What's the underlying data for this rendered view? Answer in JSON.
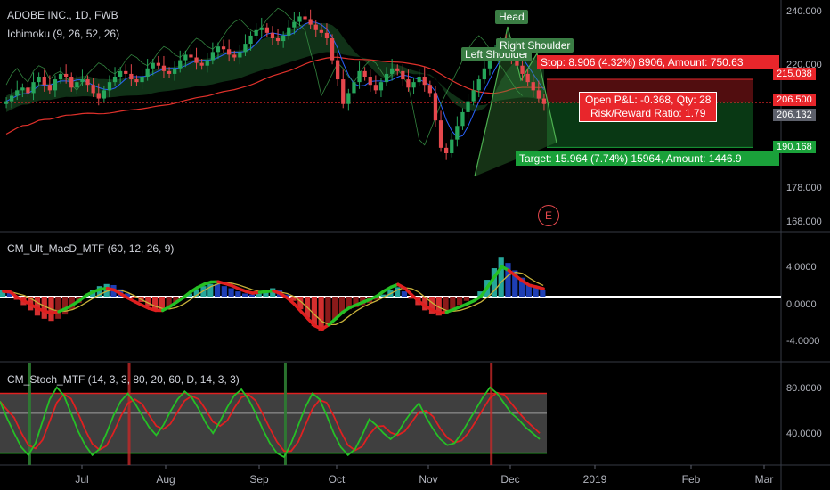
{
  "header": {
    "symbol_line": "ADOBE INC., 1D, FWB",
    "indicator_ichimoku": "Ichimoku (9, 26, 52, 26)",
    "indicator_macd": "CM_Ult_MacD_MTF (60, 12, 26, 9)",
    "indicator_stoch": "CM_Stoch_MTF (14, 3, 3, 80, 20, 60, D, 14, 3, 3)"
  },
  "colors": {
    "background": "#000000",
    "candle_up": "#26a65b",
    "candle_down": "#e5484d",
    "cloud_green": "#1e5a2a",
    "kijun_red": "#e0312b",
    "tenkan_blue": "#2962ff",
    "target_green": "#1aa13a",
    "stop_red": "#e8262b",
    "pattern_green": "#3c8f3c"
  },
  "annotations": {
    "head": "Head",
    "left_shoulder": "Left Shoulder",
    "right_shoulder": "Right Shoulder",
    "stop": "Stop: 8.906 (4.32%) 8906, Amount: 750.63",
    "target": "Target: 15.964 (7.74%) 15964, Amount: 1446.9",
    "pnl": "Open P&L: -0.368, Qty: 28",
    "rr": "Risk/Reward Ratio: 1.79",
    "earnings": "E"
  },
  "price_tags": {
    "stop_price": "215.038",
    "entry_price": "206.500",
    "last_price": "206.132",
    "target_price": "190.168"
  },
  "chart_data": [
    {
      "type": "candlestick",
      "title": "ADOBE INC., 1D, FWB",
      "x_tick_labels": [
        "Jul",
        "Aug",
        "Sep",
        "Oct",
        "Nov",
        "Dec",
        "2019",
        "Feb",
        "Mar"
      ],
      "y_tick_labels": [
        "240.000",
        "220.000",
        "178.000",
        "168.000"
      ],
      "ylim": [
        160,
        244
      ],
      "levels": {
        "stop": 215.038,
        "entry": 206.5,
        "last": 206.132,
        "target": 190.168
      },
      "close_approx": [
        207,
        209,
        211,
        212,
        210,
        214,
        216,
        213,
        211,
        215,
        217,
        216,
        212,
        214,
        215,
        213,
        210,
        208,
        211,
        214,
        216,
        218,
        217,
        215,
        214,
        216,
        219,
        221,
        220,
        218,
        217,
        219,
        222,
        224,
        223,
        221,
        220,
        222,
        225,
        227,
        226,
        224,
        223,
        225,
        228,
        231,
        233,
        234,
        232,
        230,
        229,
        231,
        234,
        236,
        238,
        237,
        235,
        233,
        232,
        230,
        222,
        215,
        206,
        210,
        214,
        218,
        216,
        213,
        211,
        214,
        217,
        219,
        218,
        215,
        212,
        214,
        216,
        213,
        210,
        200,
        190,
        188,
        193,
        198,
        203,
        207,
        211,
        215,
        219,
        223,
        226,
        228,
        226,
        223,
        220,
        217,
        214,
        211,
        208,
        206
      ]
    },
    {
      "type": "bar",
      "title": "CM_Ult_MacD_MTF (60, 12, 26, 9)",
      "y_tick_labels": [
        "4.0000",
        "0.0000",
        "-4.0000"
      ],
      "ylim": [
        -6,
        6
      ],
      "hist_approx": [
        0.6,
        0.4,
        -0.3,
        -0.8,
        -1.3,
        -1.8,
        -2.1,
        -2.3,
        -2.1,
        -1.7,
        -1.2,
        -0.6,
        0.1,
        0.6,
        1.0,
        1.2,
        1.1,
        0.7,
        0.3,
        -0.1,
        -0.5,
        -0.9,
        -1.2,
        -1.3,
        -1.0,
        -0.6,
        -0.2,
        0.3,
        0.7,
        1.0,
        1.2,
        1.2,
        1.0,
        0.8,
        0.5,
        0.3,
        0.2,
        0.4,
        0.6,
        0.8,
        0.6,
        0.2,
        -0.4,
        -1.2,
        -2.0,
        -2.8,
        -3.2,
        -2.8,
        -2.2,
        -1.6,
        -1.2,
        -1.0,
        -0.8,
        -0.6,
        -0.3,
        0.2,
        0.6,
        0.9,
        0.5,
        -0.2,
        -0.8,
        -1.3,
        -1.6,
        -1.8,
        -1.6,
        -1.2,
        -0.8,
        -0.4,
        0.0,
        0.5,
        1.6,
        2.7,
        3.7,
        3.2,
        2.5,
        1.8,
        1.2,
        0.9,
        0.6
      ]
    },
    {
      "type": "line",
      "title": "CM_Stoch_MTF (14, 3, 3, 80, 20, 60, D, 14, 3, 3)",
      "y_tick_labels": [
        "80.0000",
        "40.0000"
      ],
      "ylim": [
        8,
        110
      ],
      "k_approx": [
        72,
        55,
        40,
        26,
        18,
        30,
        52,
        74,
        86,
        78,
        60,
        42,
        28,
        18,
        24,
        40,
        58,
        72,
        80,
        70,
        58,
        46,
        38,
        48,
        62,
        74,
        82,
        76,
        64,
        50,
        40,
        52,
        66,
        78,
        84,
        74,
        60,
        44,
        30,
        20,
        16,
        30,
        48,
        66,
        80,
        74,
        58,
        40,
        26,
        18,
        24,
        38,
        54,
        48,
        40,
        34,
        40,
        52,
        62,
        70,
        56,
        44,
        34,
        28,
        30,
        40,
        52,
        64,
        76,
        86,
        80,
        70,
        60,
        54,
        46,
        40,
        34
      ]
    }
  ]
}
